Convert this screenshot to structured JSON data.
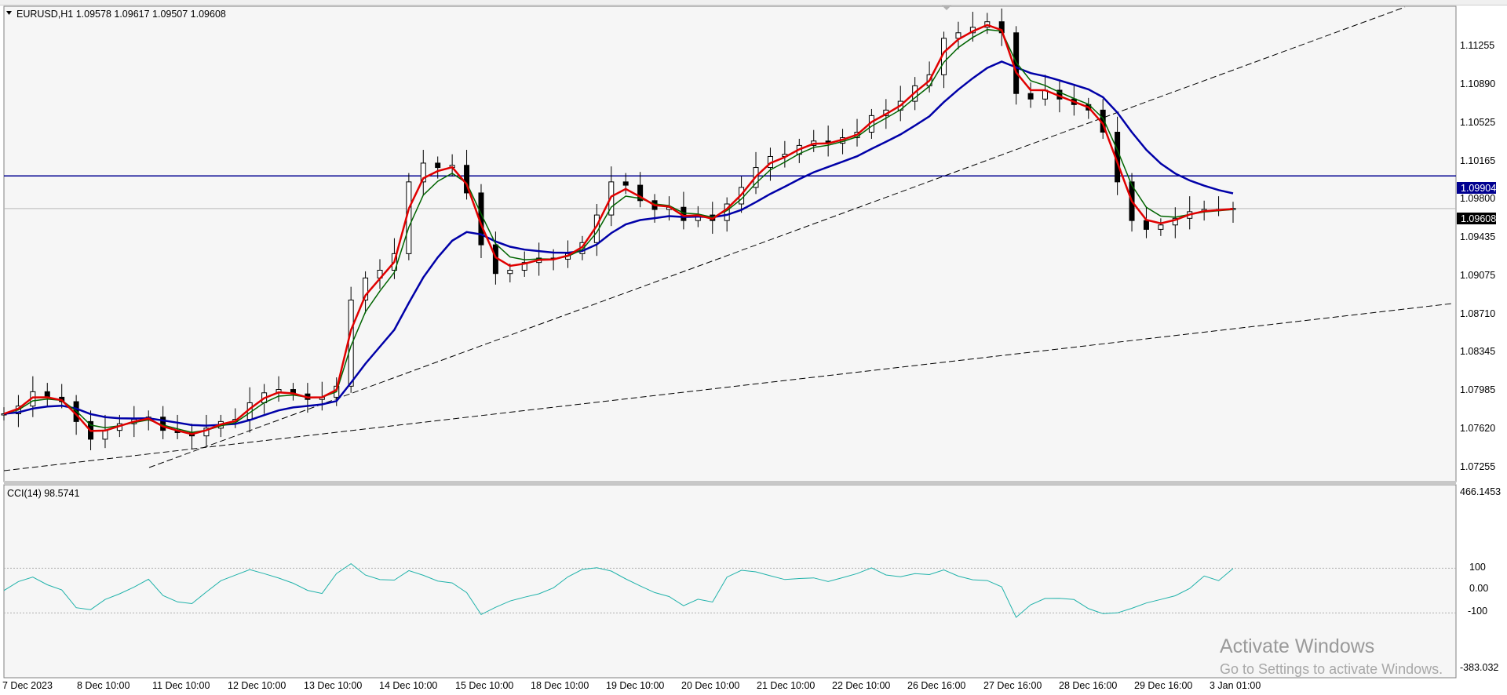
{
  "main": {
    "symbol_header": "EURUSD,H1  1.09578 1.09617 1.09507 1.09608",
    "price_levels": [
      "1.11255",
      "1.10890",
      "1.10525",
      "1.10165",
      "1.09800",
      "1.09435",
      "1.09075",
      "1.08710",
      "1.08345",
      "1.07985",
      "1.07620",
      "1.07255"
    ],
    "hline_price": "1.09904",
    "current_price": "1.09608",
    "colors": {
      "background": "#f6f6f6",
      "candles": "#000000",
      "ma_fast": "#e00000",
      "ma_medium": "#006400",
      "ma_slow": "#0000a8",
      "hline": "#000090",
      "cci": "#20b2aa",
      "price_marker_blue": "#000090",
      "price_marker_black": "#000000"
    }
  },
  "indicator": {
    "label": "CCI(14) 98.5741",
    "levels": [
      "466.1453",
      "100",
      "0.00",
      "-100",
      "-383.032"
    ]
  },
  "time_axis": {
    "labels": [
      "7 Dec 2023",
      "8 Dec 10:00",
      "11 Dec 10:00",
      "12 Dec 10:00",
      "13 Dec 10:00",
      "14 Dec 10:00",
      "15 Dec 10:00",
      "18 Dec 10:00",
      "19 Dec 10:00",
      "20 Dec 10:00",
      "21 Dec 10:00",
      "22 Dec 10:00",
      "26 Dec 16:00",
      "27 Dec 16:00",
      "28 Dec 16:00",
      "29 Dec 16:00",
      "3 Jan 01:00"
    ]
  },
  "watermark": {
    "line1": "Activate Windows",
    "line2": "Go to Settings to activate Windows."
  },
  "chart_data": {
    "type": "line",
    "symbol": "EURUSD",
    "timeframe": "H1",
    "x": [
      0,
      4,
      8,
      12,
      16,
      20,
      24,
      28,
      32,
      36,
      40,
      44,
      48,
      52,
      56,
      60,
      64,
      68,
      72,
      76,
      80,
      84,
      88,
      92,
      96,
      100,
      104,
      108,
      112,
      116,
      120,
      124,
      128,
      132,
      136,
      140,
      144,
      148,
      152,
      156,
      160,
      164,
      168,
      172,
      176,
      180,
      184,
      188,
      192,
      196,
      200,
      204,
      208,
      212,
      216,
      220,
      224,
      228,
      232,
      236,
      240,
      244,
      248,
      252,
      256,
      260,
      264,
      268,
      272,
      276,
      280,
      284,
      288,
      292,
      296,
      300,
      304,
      308,
      312,
      316,
      320,
      324,
      328,
      332,
      336,
      340
    ],
    "series": [
      {
        "name": "EURUSD,H1",
        "values": [
          1.0775,
          1.0782,
          1.0795,
          1.079,
          1.0786,
          1.0768,
          1.0752,
          1.076,
          1.0766,
          1.077,
          1.0772,
          1.076,
          1.0758,
          1.0755,
          1.0762,
          1.0768,
          1.077,
          1.0785,
          1.0794,
          1.0797,
          1.0793,
          1.0788,
          1.079,
          1.08,
          1.0878,
          1.0898,
          1.0905,
          1.092,
          1.0985,
          1.1002,
          1.0998,
          1.1,
          1.0975,
          1.0928,
          1.0902,
          1.0905,
          1.0912,
          1.0916,
          1.0915,
          1.092,
          1.093,
          1.0955,
          1.0985,
          1.0982,
          1.0968,
          1.096,
          1.0962,
          1.095,
          1.0955,
          1.095,
          1.0965,
          1.098,
          1.0998,
          1.1008,
          1.101,
          1.1018,
          1.1022,
          1.102,
          1.1025,
          1.103,
          1.1045,
          1.105,
          1.1058,
          1.1072,
          1.1082,
          1.1115,
          1.112,
          1.1125,
          1.113,
          1.112,
          1.1065,
          1.106,
          1.1068,
          1.106,
          1.1055,
          1.105,
          1.103,
          1.0985,
          1.095,
          1.0942,
          1.0946,
          1.0952,
          1.0958,
          1.096,
          1.096,
          1.0961
        ]
      }
    ],
    "ylim": [
      1.0715,
      1.1144
    ],
    "indicator": {
      "name": "CCI(14)",
      "last_value": 98.5741,
      "ylim": [
        -383.032,
        466.1453
      ],
      "levels": [
        100,
        0,
        -100
      ]
    }
  }
}
